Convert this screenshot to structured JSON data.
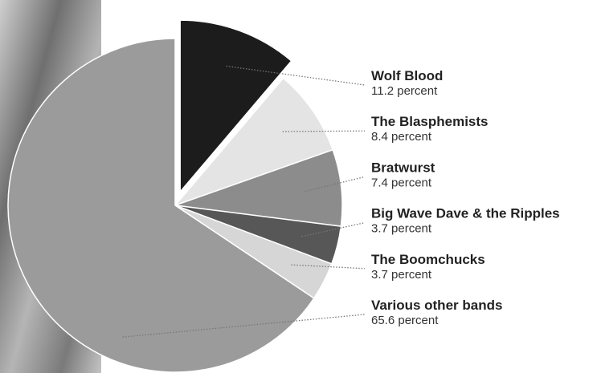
{
  "chart_data": {
    "type": "pie",
    "categories": [
      "Wolf Blood",
      "The Blasphemists",
      "Bratwurst",
      "Big Wave Dave & the Ripples",
      "The Boomchucks",
      "Various other bands"
    ],
    "values": [
      11.2,
      8.4,
      7.4,
      3.7,
      3.7,
      65.6
    ],
    "value_labels": [
      "11.2 percent",
      "8.4 percent",
      "7.4 percent",
      "3.7 percent",
      "3.7 percent",
      "65.6 percent"
    ],
    "colors": [
      "#1c1c1c",
      "#e4e4e4",
      "#8c8c8c",
      "#575757",
      "#d6d6d6",
      "#9b9b9b"
    ]
  }
}
